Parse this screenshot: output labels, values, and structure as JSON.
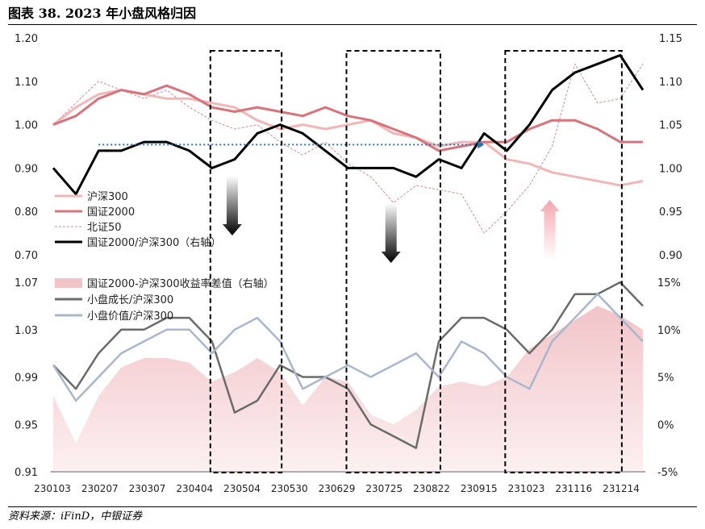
{
  "title": "图表 38. 2023 年小盘风格归因",
  "source": "资料来源：iFinD，中银证券",
  "colors": {
    "hs300": "#f3b6b6",
    "gz2000": "#d9737b",
    "bz50": "#cf8e93",
    "ratio": "#000000",
    "spread_fill": "#f2c4c8",
    "growth": "#6b6b6b",
    "value": "#a9b6cc",
    "blue_dotted": "#2a72b5",
    "down_arrow": "#000000",
    "up_arrow": "#f4a6ad"
  },
  "chart_data": [
    {
      "type": "line",
      "panel": "top",
      "x_ticks": [
        "230103",
        "230207",
        "230307",
        "230404",
        "230504",
        "230530",
        "230629",
        "230725",
        "230822",
        "230915",
        "231023",
        "231116",
        "231214"
      ],
      "left_ticks": [
        "1.20",
        "1.10",
        "1.00",
        "0.90",
        "0.80",
        "0.70"
      ],
      "right_ticks": [
        "1.15",
        "1.10",
        "1.05",
        "1.00",
        "0.95",
        "0.90"
      ],
      "left_ylim": [
        0.7,
        1.2
      ],
      "right_ylim": [
        0.9,
        1.15
      ],
      "series": [
        {
          "name": "沪深300",
          "axis": "left",
          "style": "solid",
          "values": [
            1.0,
            1.04,
            1.07,
            1.08,
            1.07,
            1.06,
            1.06,
            1.05,
            1.04,
            1.01,
            0.99,
            1.0,
            0.99,
            1.0,
            1.01,
            0.98,
            0.97,
            0.95,
            0.96,
            0.96,
            0.92,
            0.91,
            0.89,
            0.88,
            0.87,
            0.86,
            0.87
          ]
        },
        {
          "name": "国证2000",
          "axis": "left",
          "style": "solid",
          "values": [
            1.0,
            1.02,
            1.06,
            1.08,
            1.07,
            1.09,
            1.07,
            1.04,
            1.03,
            1.04,
            1.03,
            1.02,
            1.04,
            1.02,
            1.01,
            0.99,
            0.97,
            0.94,
            0.95,
            0.96,
            0.96,
            0.99,
            1.01,
            1.01,
            0.99,
            0.96,
            0.96
          ]
        },
        {
          "name": "北证50",
          "axis": "left",
          "style": "dashed",
          "values": [
            1.0,
            1.05,
            1.1,
            1.08,
            1.06,
            1.08,
            1.04,
            1.01,
            0.99,
            1.0,
            0.96,
            0.93,
            0.96,
            0.91,
            0.88,
            0.82,
            0.86,
            0.85,
            0.84,
            0.75,
            0.8,
            0.86,
            0.95,
            1.14,
            1.05,
            1.06,
            1.14
          ]
        },
        {
          "name": "国证2000/沪深300（右轴）",
          "axis": "right",
          "style": "solid",
          "values": [
            1.0,
            0.97,
            1.02,
            1.02,
            1.03,
            1.03,
            1.02,
            1.0,
            1.01,
            1.04,
            1.05,
            1.04,
            1.02,
            1.0,
            1.0,
            1.0,
            0.99,
            1.01,
            1.0,
            1.04,
            1.02,
            1.05,
            1.09,
            1.11,
            1.12,
            1.13,
            1.09
          ]
        }
      ],
      "annotations": {
        "dotted_reference": {
          "from_index": 2,
          "to_index": 19,
          "value": 1.027,
          "axis": "right"
        },
        "boxes": [
          [
            7,
            10
          ],
          [
            13,
            17
          ],
          [
            20,
            25
          ]
        ],
        "arrows": [
          {
            "direction": "down",
            "at_index": 8
          },
          {
            "direction": "down",
            "at_index": 15
          },
          {
            "direction": "up",
            "at_index": 22
          }
        ]
      }
    },
    {
      "type": "area+line",
      "panel": "bottom",
      "left_ticks": [
        "1.07",
        "1.03",
        "0.99",
        "0.95",
        "0.91"
      ],
      "right_ticks": [
        "15%",
        "10%",
        "5%",
        "0%",
        "-5%"
      ],
      "left_ylim": [
        0.91,
        1.07
      ],
      "right_ylim": [
        -5,
        15
      ],
      "series": [
        {
          "name": "国证2000-沪深300收益率差值（右轴）",
          "axis": "right",
          "style": "area",
          "values": [
            3.0,
            -2.0,
            3.0,
            6.0,
            7.0,
            7.0,
            6.5,
            4.5,
            5.5,
            7.0,
            5.5,
            2.0,
            5.0,
            4.5,
            1.0,
            0.0,
            1.5,
            4.0,
            4.5,
            4.0,
            5.0,
            8.0,
            9.5,
            11.0,
            12.5,
            11.5,
            10.0
          ]
        },
        {
          "name": "小盘成长/沪深300",
          "axis": "left",
          "style": "solid",
          "values": [
            1.0,
            0.98,
            1.01,
            1.03,
            1.03,
            1.04,
            1.04,
            1.02,
            0.96,
            0.97,
            1.0,
            0.99,
            0.99,
            0.98,
            0.95,
            0.94,
            0.93,
            1.02,
            1.04,
            1.04,
            1.03,
            1.01,
            1.03,
            1.06,
            1.06,
            1.07,
            1.05
          ]
        },
        {
          "name": "小盘价值/沪深300",
          "axis": "left",
          "style": "solid",
          "values": [
            1.0,
            0.97,
            0.99,
            1.01,
            1.02,
            1.03,
            1.03,
            1.01,
            1.03,
            1.04,
            1.02,
            0.98,
            0.99,
            1.0,
            0.99,
            1.0,
            1.01,
            0.99,
            1.02,
            1.01,
            0.99,
            0.98,
            1.02,
            1.04,
            1.06,
            1.04,
            1.02
          ]
        }
      ]
    }
  ]
}
